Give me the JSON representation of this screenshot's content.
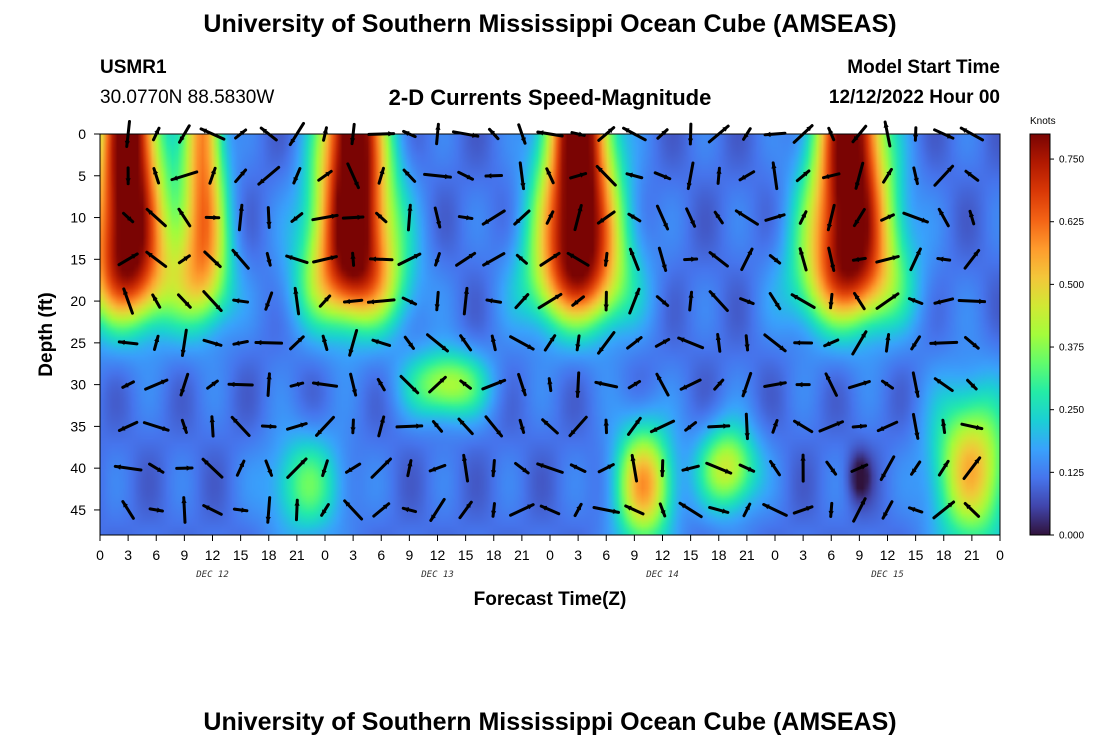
{
  "header": {
    "title": "University of Southern Mississippi Ocean Cube (AMSEAS)",
    "station_id": "USMR1",
    "station_coords": "30.0770N  88.5830W",
    "plot_title": "2-D Currents Speed-Magnitude",
    "model_label": "Model Start Time",
    "model_time": "12/12/2022 Hour 00"
  },
  "footer": {
    "title": "University of Southern Mississippi Ocean Cube (AMSEAS)"
  },
  "colors": {
    "scale": [
      "#30123b",
      "#4145ab",
      "#4675ed",
      "#39a2fc",
      "#1bcfd4",
      "#24eca6",
      "#61fc6c",
      "#a4fc3b",
      "#d1e834",
      "#f3c63a",
      "#fe9b2d",
      "#f36315",
      "#d93806",
      "#b11901",
      "#7a0403"
    ]
  },
  "chart_data": {
    "type": "heatmap",
    "title": "2-D Currents Speed-Magnitude",
    "xlabel": "Forecast Time(Z)",
    "ylabel": "Depth (ft)",
    "x_range_hours": [
      0,
      96
    ],
    "x_tick_labels": [
      "0",
      "3",
      "6",
      "9",
      "12",
      "15",
      "18",
      "21",
      "0",
      "3",
      "6",
      "9",
      "12",
      "15",
      "18",
      "21",
      "0",
      "3",
      "6",
      "9",
      "12",
      "15",
      "18",
      "21",
      "0",
      "3",
      "6",
      "9",
      "12",
      "15",
      "18",
      "21",
      "0"
    ],
    "date_labels": [
      {
        "label": "DEC 12",
        "hour": 12
      },
      {
        "label": "DEC 13",
        "hour": 36
      },
      {
        "label": "DEC 14",
        "hour": 60
      },
      {
        "label": "DEC 15",
        "hour": 84
      }
    ],
    "y_range_ft": [
      0,
      48
    ],
    "y_ticks": [
      0,
      5,
      10,
      15,
      20,
      25,
      30,
      35,
      40,
      45
    ],
    "colorbar": {
      "label": "Knots",
      "range": [
        0,
        0.8
      ],
      "ticks": [
        "0.750",
        "0.625",
        "0.500",
        "0.375",
        "0.250",
        "0.125",
        "0.000"
      ],
      "tick_values": [
        0.75,
        0.625,
        0.5,
        0.375,
        0.25,
        0.125,
        0.0
      ]
    },
    "surface_jets": [
      {
        "center_hour": 3,
        "width_hours": 3.2,
        "amplitude": 0.78
      },
      {
        "center_hour": 11,
        "width_hours": 2.0,
        "amplitude": 0.5
      },
      {
        "center_hour": 27,
        "width_hours": 3.4,
        "amplitude": 0.8
      },
      {
        "center_hour": 51,
        "width_hours": 3.4,
        "amplitude": 0.8
      },
      {
        "center_hour": 80,
        "width_hours": 3.6,
        "amplitude": 0.78
      }
    ],
    "deep_blobs": [
      {
        "center_hour": 22,
        "center_ft": 42,
        "width_hours": 4,
        "width_ft": 6,
        "amplitude": 0.22
      },
      {
        "center_hour": 58,
        "center_ft": 42,
        "width_hours": 3,
        "width_ft": 7,
        "amplitude": 0.45
      },
      {
        "center_hour": 67,
        "center_ft": 40,
        "width_hours": 3,
        "width_ft": 5,
        "amplitude": 0.35
      },
      {
        "center_hour": 93,
        "center_ft": 40,
        "width_hours": 4,
        "width_ft": 9,
        "amplitude": 0.42
      },
      {
        "center_hour": 37,
        "center_ft": 30,
        "width_hours": 4,
        "width_ft": 4,
        "amplitude": 0.32
      }
    ],
    "min_spot": {
      "hour": 81,
      "ft": 41,
      "value": 0.0
    },
    "vector_grid": {
      "x_step_hours": 3,
      "y_step_ft": 5
    }
  }
}
